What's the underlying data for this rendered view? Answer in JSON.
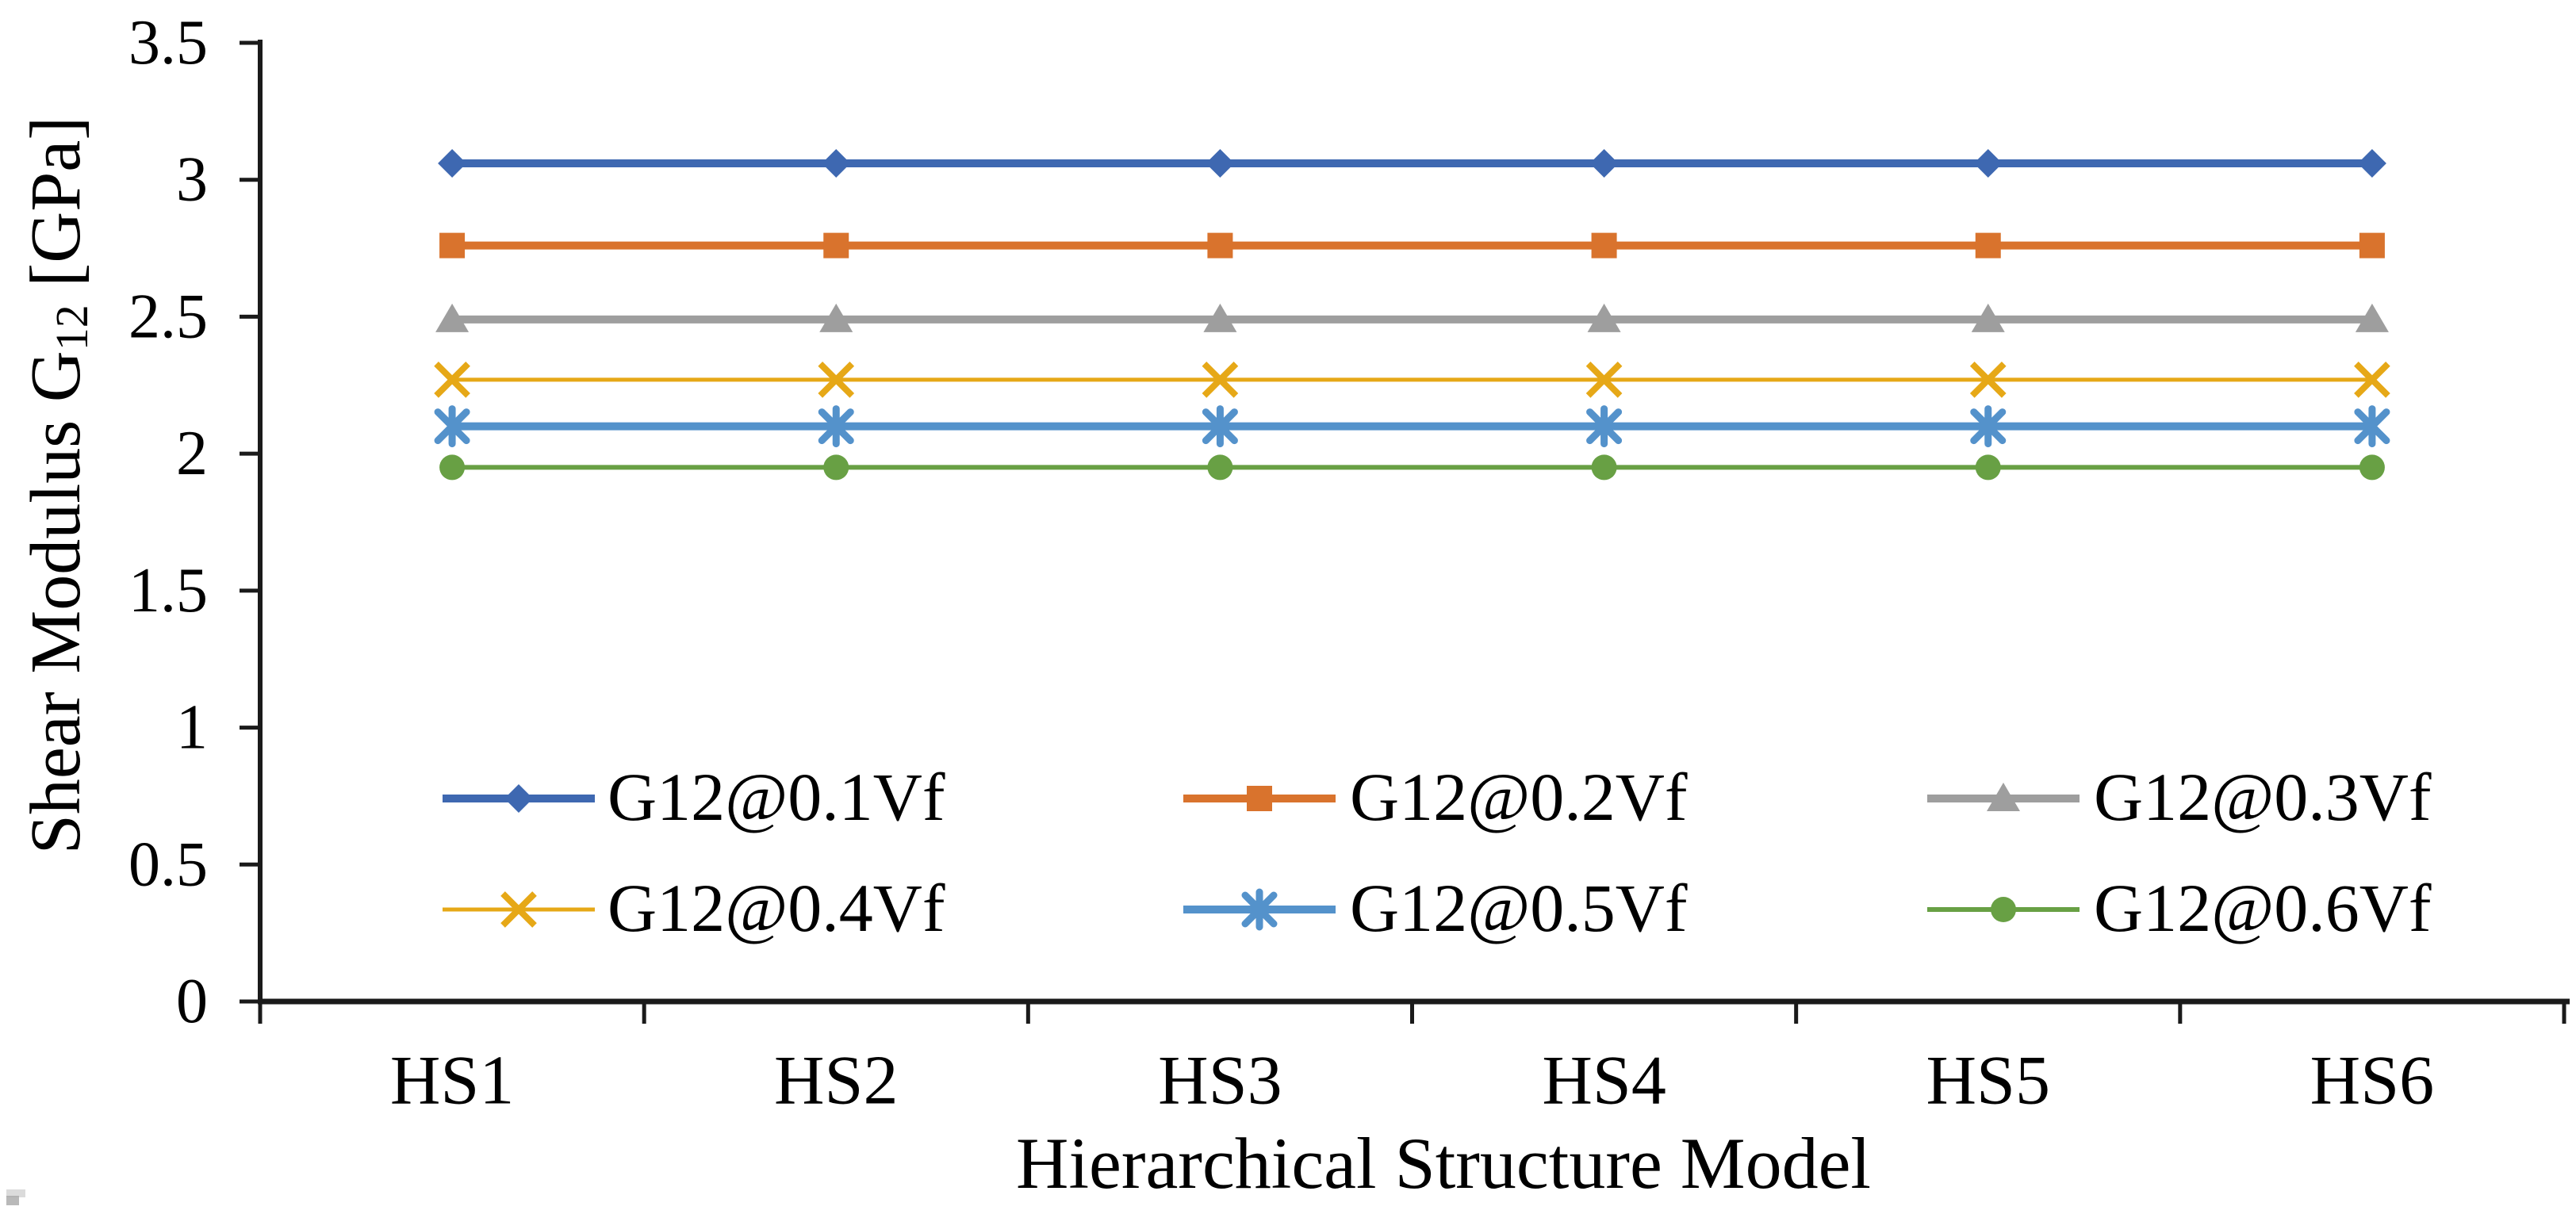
{
  "chart_data": {
    "type": "line",
    "title": "",
    "xlabel": "Hierarchical Structure Model",
    "ylabel": "Shear Modulus G12 [GPa]",
    "ylabel_parts": {
      "main": "Shear Modulus G",
      "sub": "12",
      "unit": " [GPa]"
    },
    "categories": [
      "HS1",
      "HS2",
      "HS3",
      "HS4",
      "HS5",
      "HS6"
    ],
    "series": [
      {
        "name": "G12@0.1Vf",
        "values": [
          3.06,
          3.06,
          3.06,
          3.06,
          3.06,
          3.06
        ],
        "color": "#3E68B1",
        "marker": "diamond",
        "line_width": 10
      },
      {
        "name": "G12@0.2Vf",
        "values": [
          2.76,
          2.76,
          2.76,
          2.76,
          2.76,
          2.76
        ],
        "color": "#D9732D",
        "marker": "square",
        "line_width": 10
      },
      {
        "name": "G12@0.3Vf",
        "values": [
          2.49,
          2.49,
          2.49,
          2.49,
          2.49,
          2.49
        ],
        "color": "#9E9E9E",
        "marker": "triangle",
        "line_width": 10
      },
      {
        "name": "G12@0.4Vf",
        "values": [
          2.27,
          2.27,
          2.27,
          2.27,
          2.27,
          2.27
        ],
        "color": "#E6A817",
        "marker": "x",
        "line_width": 5
      },
      {
        "name": "G12@0.5Vf",
        "values": [
          2.1,
          2.1,
          2.1,
          2.1,
          2.1,
          2.1
        ],
        "color": "#5492CB",
        "marker": "asterisk",
        "line_width": 10
      },
      {
        "name": "G12@0.6Vf",
        "values": [
          1.95,
          1.95,
          1.95,
          1.95,
          1.95,
          1.95
        ],
        "color": "#68A044",
        "marker": "circle",
        "line_width": 6
      }
    ],
    "ylim": [
      0,
      3.5
    ],
    "ytick_step": 0.5,
    "ytick_labels": [
      "0",
      "0.5",
      "1",
      "1.5",
      "2",
      "2.5",
      "3",
      "3.5"
    ],
    "grid": false,
    "legend_position": "inside-bottom-left",
    "legend_rows": [
      [
        "G12@0.1Vf",
        "G12@0.2Vf",
        "G12@0.3Vf"
      ],
      [
        "G12@0.4Vf",
        "G12@0.5Vf",
        "G12@0.6Vf"
      ]
    ]
  }
}
